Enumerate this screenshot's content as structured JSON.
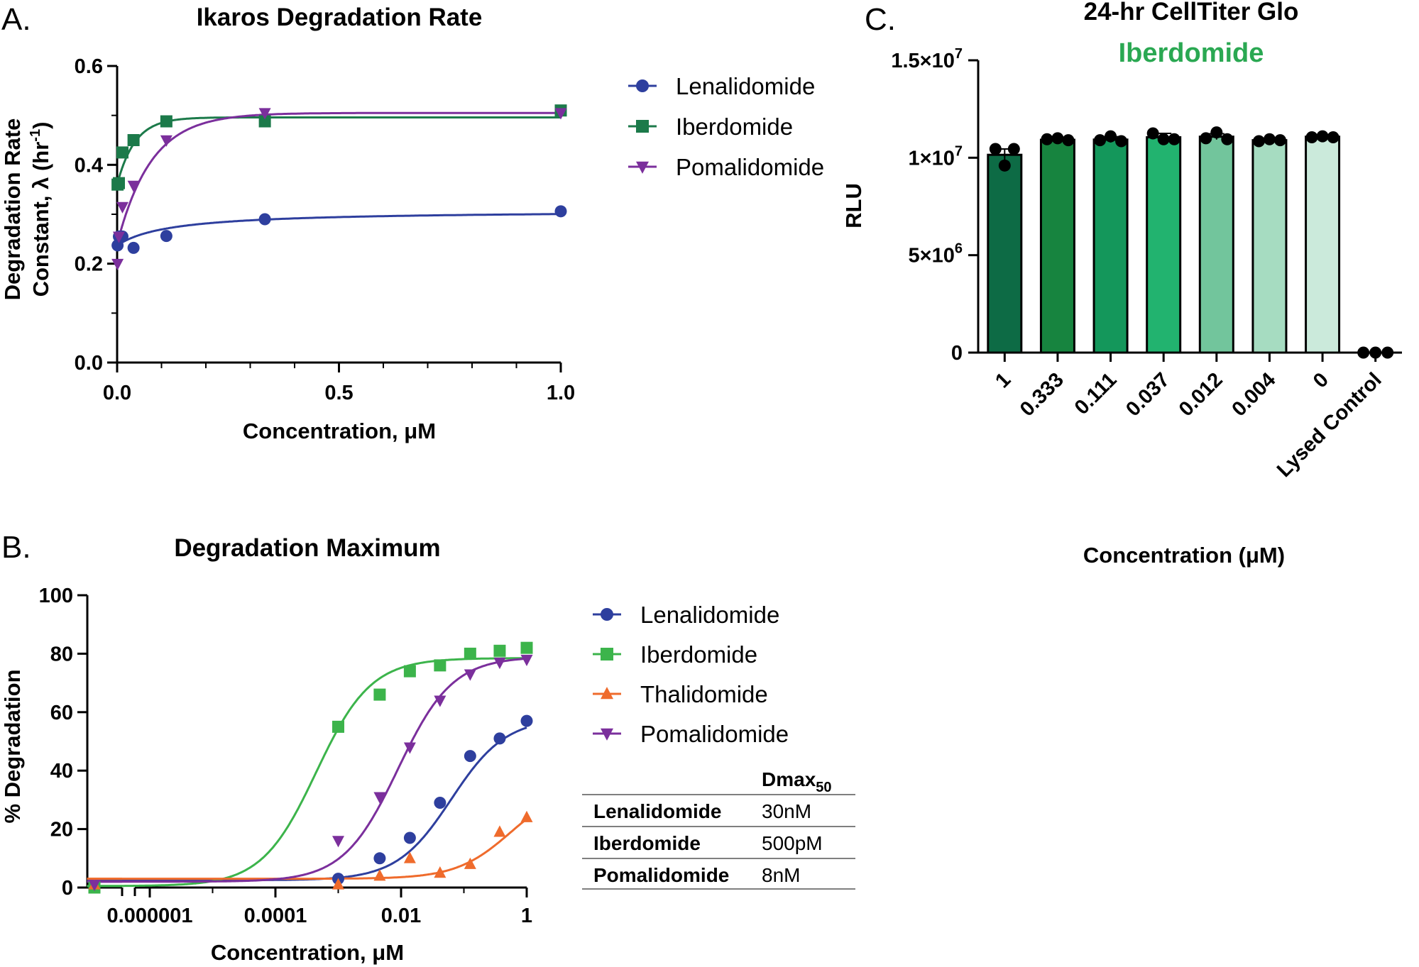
{
  "panels": {
    "a": {
      "label": "A.",
      "chart_data": {
        "type": "scatter",
        "title": "Ikaros Degradation Rate",
        "xlabel": "Concentration, μM",
        "ylabel_line1": "Degradation Rate",
        "ylabel_line2_pre": "Constant, λ (hr",
        "ylabel_sup": "-1",
        "ylabel_line2_post": ")",
        "xlim": [
          0,
          1
        ],
        "ylim": [
          0,
          0.6
        ],
        "x_ticks": [
          0,
          0.5,
          1.0
        ],
        "x_tick_labels": [
          "0.0",
          "0.5",
          "1.0"
        ],
        "y_ticks": [
          0,
          0.2,
          0.4,
          0.6
        ],
        "y_tick_labels": [
          "0.0",
          "0.2",
          "0.4",
          "0.6"
        ],
        "legend_position": "right",
        "series": [
          {
            "name": "Lenalidomide",
            "color": "#2e3f9e",
            "marker": "circle",
            "points": [
              [
                0.001,
                0.237
              ],
              [
                0.004,
                0.255
              ],
              [
                0.012,
                0.255
              ],
              [
                0.037,
                0.232
              ],
              [
                0.111,
                0.256
              ],
              [
                0.333,
                0.29
              ],
              [
                1.0,
                0.306
              ]
            ],
            "fit": {
              "model": "hyperbolic",
              "y0": 0.237,
              "ymax": 0.308,
              "k": 0.12
            }
          },
          {
            "name": "Iberdomide",
            "color": "#1c7a4a",
            "marker": "square",
            "points": [
              [
                0.001,
                0.36
              ],
              [
                0.004,
                0.363
              ],
              [
                0.012,
                0.425
              ],
              [
                0.037,
                0.45
              ],
              [
                0.111,
                0.488
              ],
              [
                0.333,
                0.488
              ],
              [
                1.0,
                0.51
              ]
            ],
            "fit": {
              "model": "exponential",
              "y0": 0.36,
              "ymax": 0.496,
              "k": 25
            }
          },
          {
            "name": "Pomalidomide",
            "color": "#7b2f9c",
            "marker": "triangle-down",
            "points": [
              [
                0.001,
                0.2
              ],
              [
                0.004,
                0.255
              ],
              [
                0.012,
                0.315
              ],
              [
                0.037,
                0.358
              ],
              [
                0.111,
                0.45
              ],
              [
                0.333,
                0.505
              ],
              [
                1.0,
                0.505
              ]
            ],
            "fit": {
              "model": "exponential",
              "y0": 0.24,
              "ymax": 0.505,
              "k": 13
            }
          }
        ]
      }
    },
    "b": {
      "label": "B.",
      "chart_data": {
        "type": "scatter",
        "title": "Degradation Maximum",
        "xlabel": "Concentration, μM",
        "ylabel": "% Degradation",
        "x_scale": "log",
        "x_ticks_log10": [
          -6,
          -4,
          -2,
          0
        ],
        "x_tick_labels": [
          "0.000001",
          "0.0001",
          "0.01",
          "1"
        ],
        "ylim": [
          0,
          100
        ],
        "y_ticks": [
          0,
          20,
          40,
          60,
          80,
          100
        ],
        "y_tick_labels": [
          "0",
          "20",
          "40",
          "60",
          "80",
          "100"
        ],
        "axis_break": true,
        "legend_position": "right",
        "series": [
          {
            "name": "Lenalidomide",
            "color": "#2e3f9e",
            "marker": "circle",
            "log10_x": [
              -8,
              -3,
              -2.34,
              -1.86,
              -1.38,
              -0.9,
              -0.43,
              0
            ],
            "y": [
              0,
              3,
              10,
              17,
              29,
              45,
              51,
              57
            ],
            "fit": {
              "bottom": 2.5,
              "top": 58,
              "log_ec50": -1.2,
              "hill": 1.0
            }
          },
          {
            "name": "Iberdomide",
            "color": "#3cb44b",
            "marker": "square",
            "log10_x": [
              -8,
              -3,
              -2.34,
              -1.86,
              -1.38,
              -0.9,
              -0.43,
              0
            ],
            "y": [
              0,
              55,
              66,
              74,
              76,
              80,
              81,
              82
            ],
            "fit": {
              "bottom": 0.5,
              "top": 78.5,
              "log_ec50": -3.35,
              "hill": 1.0
            }
          },
          {
            "name": "Thalidomide",
            "color": "#ef6b2c",
            "marker": "triangle-up",
            "log10_x": [
              -8,
              -3,
              -2.34,
              -1.86,
              -1.38,
              -0.9,
              -0.43,
              0
            ],
            "y": [
              1,
              1,
              4,
              10,
              5,
              8,
              19,
              24
            ],
            "fit": {
              "bottom": 3,
              "top": 35,
              "log_ec50": -0.25,
              "hill": 1.0
            }
          },
          {
            "name": "Pomalidomide",
            "color": "#7b2f9c",
            "marker": "triangle-down",
            "log10_x": [
              -8,
              -3,
              -2.34,
              -1.86,
              -1.38,
              -0.9,
              -0.43,
              0
            ],
            "y": [
              1,
              16,
              31,
              48,
              64,
              73,
              77,
              78
            ],
            "fit": {
              "bottom": 2,
              "top": 79,
              "log_ec50": -2.05,
              "hill": 1.0
            }
          }
        ]
      },
      "table": {
        "header": [
          "",
          "Dmax",
          "50"
        ],
        "rows": [
          {
            "drug": "Lenalidomide",
            "value": "30nM"
          },
          {
            "drug": "Iberdomide",
            "value": "500pM"
          },
          {
            "drug": "Pomalidomide",
            "value": "8nM"
          }
        ]
      }
    },
    "c": {
      "label": "C.",
      "chart_data": {
        "type": "bar",
        "title": "24-hr CellTiter Glo",
        "subtitle": "Iberdomide",
        "subtitle_color": "#2aa852",
        "xlabel": "Concentration (μM)",
        "ylabel": "RLU",
        "ylim": [
          0,
          15000000
        ],
        "y_ticks": [
          0,
          5000000,
          10000000,
          15000000
        ],
        "y_tick_labels": [
          {
            "mant": "0",
            "exp": ""
          },
          {
            "mant": "5×10",
            "exp": "6"
          },
          {
            "mant": "1×10",
            "exp": "7"
          },
          {
            "mant": "1.5×10",
            "exp": "7"
          }
        ],
        "categories": [
          "1",
          "0.333",
          "0.111",
          "0.037",
          "0.012",
          "0.004",
          "0",
          "Lysed Control"
        ],
        "values": [
          10150000,
          10920000,
          10930000,
          11050000,
          11080000,
          10900000,
          11080000,
          0
        ],
        "errors": [
          300000,
          100000,
          150000,
          200000,
          150000,
          80000,
          80000,
          0
        ],
        "bar_colors": [
          "#0d6b45",
          "#17843f",
          "#14975b",
          "#22b36f",
          "#72c59c",
          "#a6dcc1",
          "#cbeadb",
          "#ffffff"
        ],
        "replicates": [
          [
            10450000,
            10450000,
            9600000
          ],
          [
            10950000,
            11000000,
            10900000
          ],
          [
            10900000,
            11100000,
            10850000
          ],
          [
            11250000,
            10950000,
            10950000
          ],
          [
            11000000,
            11300000,
            10950000
          ],
          [
            10850000,
            10950000,
            10900000
          ],
          [
            11050000,
            11100000,
            11050000
          ],
          [
            0,
            0,
            0
          ]
        ]
      }
    }
  }
}
